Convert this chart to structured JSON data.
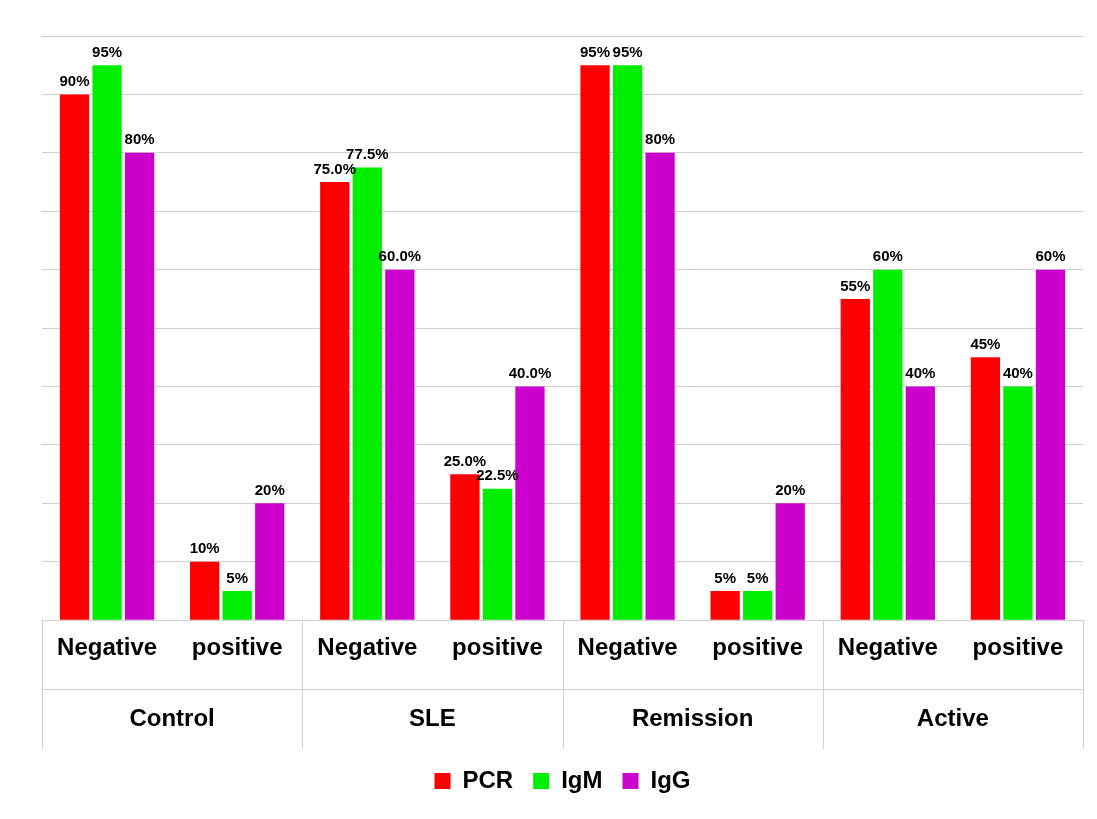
{
  "chart_data": {
    "type": "bar",
    "categories": [
      "Negative",
      "positive",
      "Negative",
      "positive",
      "Negative",
      "positive",
      "Negative",
      "positive"
    ],
    "series": [
      {
        "name": "PCR",
        "color": "#ff0000",
        "values": [
          90,
          10,
          75,
          25,
          95,
          5,
          55,
          45
        ],
        "value_labels": [
          "90%",
          "10%",
          "75.0%",
          "25.0%",
          "95%",
          "5%",
          "55%",
          "45%"
        ]
      },
      {
        "name": "IgM",
        "color": "#00ee00",
        "values": [
          95,
          5,
          77.5,
          22.5,
          95,
          5,
          60,
          40
        ],
        "value_labels": [
          "95%",
          "5%",
          "77.5%",
          "22.5%",
          "95%",
          "5%",
          "60%",
          "40%"
        ]
      },
      {
        "name": "IgG",
        "color": "#cc00cc",
        "values": [
          80,
          20,
          60,
          40,
          80,
          20,
          40,
          60
        ],
        "value_labels": [
          "80%",
          "20%",
          "60.0%",
          "40.0%",
          "80%",
          "20%",
          "40%",
          "60%"
        ]
      }
    ],
    "annotations": [
      "Control",
      "SLE",
      "Remission",
      "Active"
    ],
    "ylim": [
      0,
      100
    ],
    "yticks": [
      {
        "value": 0,
        "label": null
      },
      {
        "value": 10,
        "label": null
      },
      {
        "value": 20,
        "label": null
      },
      {
        "value": 30,
        "label": null
      },
      {
        "value": 40,
        "label": null
      },
      {
        "value": 50,
        "label": null
      },
      {
        "value": 60,
        "label": null
      },
      {
        "value": 70,
        "label": null
      },
      {
        "value": 80,
        "label": null
      },
      {
        "value": 90,
        "label": null
      },
      {
        "value": 100,
        "label": null
      }
    ],
    "tick_labels": "x",
    "grid": "y",
    "legend": "bottom"
  }
}
